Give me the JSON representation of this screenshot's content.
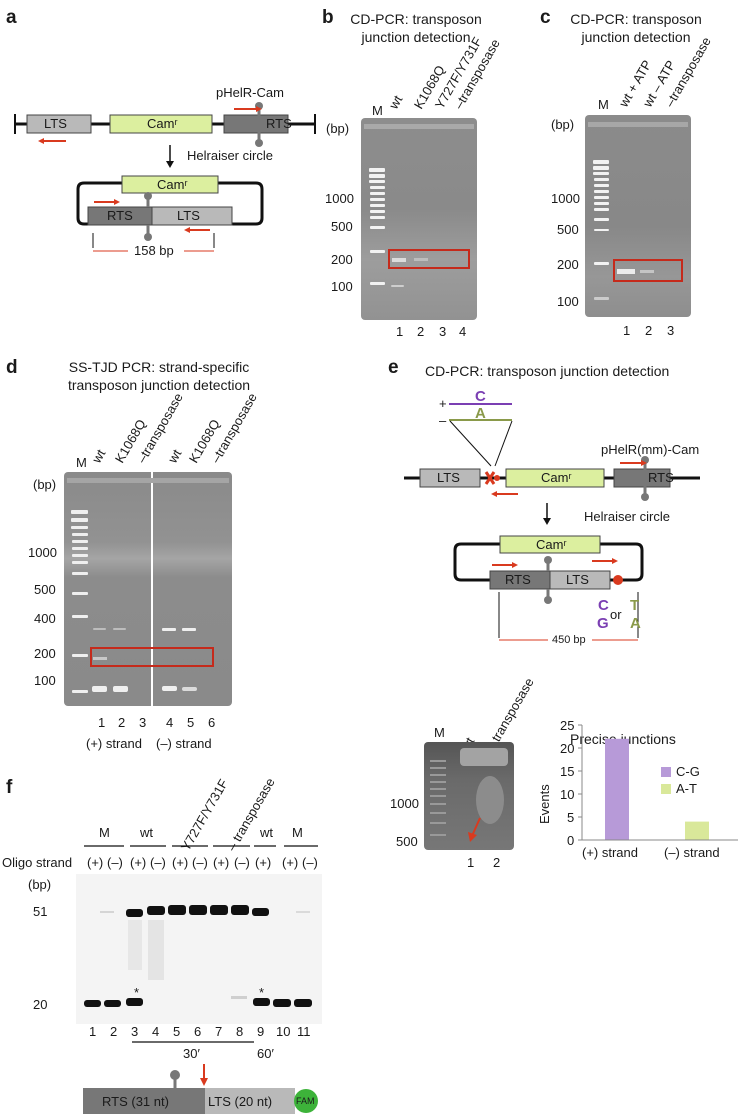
{
  "panels": {
    "a": {
      "letter": "a",
      "construct_name": "pHelR-Cam",
      "lts": "LTS",
      "rts": "RTS",
      "camr": "Camʳ",
      "arrow_label": "Helraiser circle",
      "product_size": "158 bp"
    },
    "b": {
      "letter": "b",
      "title_line1": "CD-PCR: transposon",
      "title_line2": "junction detection",
      "lanes_top": [
        "M",
        "wt",
        "K1068Q",
        "Y727F/Y731F",
        "–transposase"
      ],
      "ladder": [
        "(bp)",
        "1000",
        "500",
        "200",
        "100"
      ],
      "lane_numbers": [
        "1",
        "2",
        "3",
        "4"
      ]
    },
    "c": {
      "letter": "c",
      "title_line1": "CD-PCR: transposon",
      "title_line2": "junction detection",
      "lanes_top": [
        "M",
        "wt + ATP",
        "wt – ATP",
        "–transposase"
      ],
      "ladder": [
        "(bp)",
        "1000",
        "500",
        "200",
        "100"
      ],
      "lane_numbers": [
        "1",
        "2",
        "3"
      ]
    },
    "d": {
      "letter": "d",
      "title_line1": "SS-TJD PCR: strand-specific",
      "title_line2": "transposon junction detection",
      "lanes_top": [
        "M",
        "wt",
        "K1068Q",
        "–transposase",
        "wt",
        "K1068Q",
        "–transposase"
      ],
      "ladder": [
        "(bp)",
        "1000",
        "500",
        "400",
        "200",
        "100"
      ],
      "lane_numbers": [
        "1",
        "2",
        "3",
        "4",
        "5",
        "6"
      ],
      "strands": [
        "(+) strand",
        "(–) strand"
      ]
    },
    "e": {
      "letter": "e",
      "title": "CD-PCR: transposon junction detection",
      "construct_name": "pHelR(mm)-Cam",
      "plus": "+",
      "minus": "–",
      "top_base": "C",
      "bottom_base": "A",
      "lts": "LTS",
      "rts": "RTS",
      "camr": "Camʳ",
      "arrow_label": "Helraiser circle",
      "pair1_top": "C",
      "pair1_bottom": "G",
      "or": "or",
      "pair2_top": "T",
      "pair2_bottom": "A",
      "product_size": "450 bp",
      "gel_lanes_top": [
        "M",
        "wt",
        "– transposase"
      ],
      "gel_ladder": [
        "1000",
        "500"
      ],
      "gel_lane_numbers": [
        "1",
        "2"
      ]
    },
    "f": {
      "letter": "f",
      "group_labels": [
        "M",
        "wt",
        "Y727F/Y731F",
        "– transposase",
        "wt",
        "M"
      ],
      "oligo_label": "Oligo strand",
      "strand_signs": [
        "(+)",
        "(–)",
        "(+)",
        "(–)",
        "(+)",
        "(–)",
        "(+)",
        "(–)",
        "(+)",
        "(+)",
        "(–)"
      ],
      "bp_label": "(bp)",
      "sizes": [
        "51",
        "20"
      ],
      "star": "*",
      "lane_numbers": [
        "1",
        "2",
        "3",
        "4",
        "5",
        "6",
        "7",
        "8",
        "9",
        "10",
        "11"
      ],
      "times": [
        "30′",
        "60′"
      ],
      "substrate_rts": "RTS (31 nt)",
      "substrate_lts": "LTS (20 nt)",
      "fam": "FAM"
    }
  },
  "chart_data": {
    "type": "bar",
    "title": "Precise junctions",
    "categories": [
      "(+) strand",
      "(–) strand"
    ],
    "series": [
      {
        "name": "C-G",
        "values": [
          22,
          0
        ]
      },
      {
        "name": "A-T",
        "values": [
          0,
          4
        ]
      }
    ],
    "ylabel": "Events",
    "ylim": [
      0,
      25
    ],
    "yticks": [
      "0",
      "5",
      "10",
      "15",
      "20",
      "25"
    ],
    "colors": {
      "C-G": "#b79ad8",
      "A-T": "#d9e89a"
    },
    "legend": "top-right"
  },
  "colors": {
    "red": "#d93a1f",
    "purple": "#7b3fb3",
    "olive": "#8a9a4a",
    "camr_fill": "#dcef9f",
    "rts_fill": "#777777",
    "lts_fill": "#b9b9b9",
    "gel_bg": "#8c8c8c"
  }
}
